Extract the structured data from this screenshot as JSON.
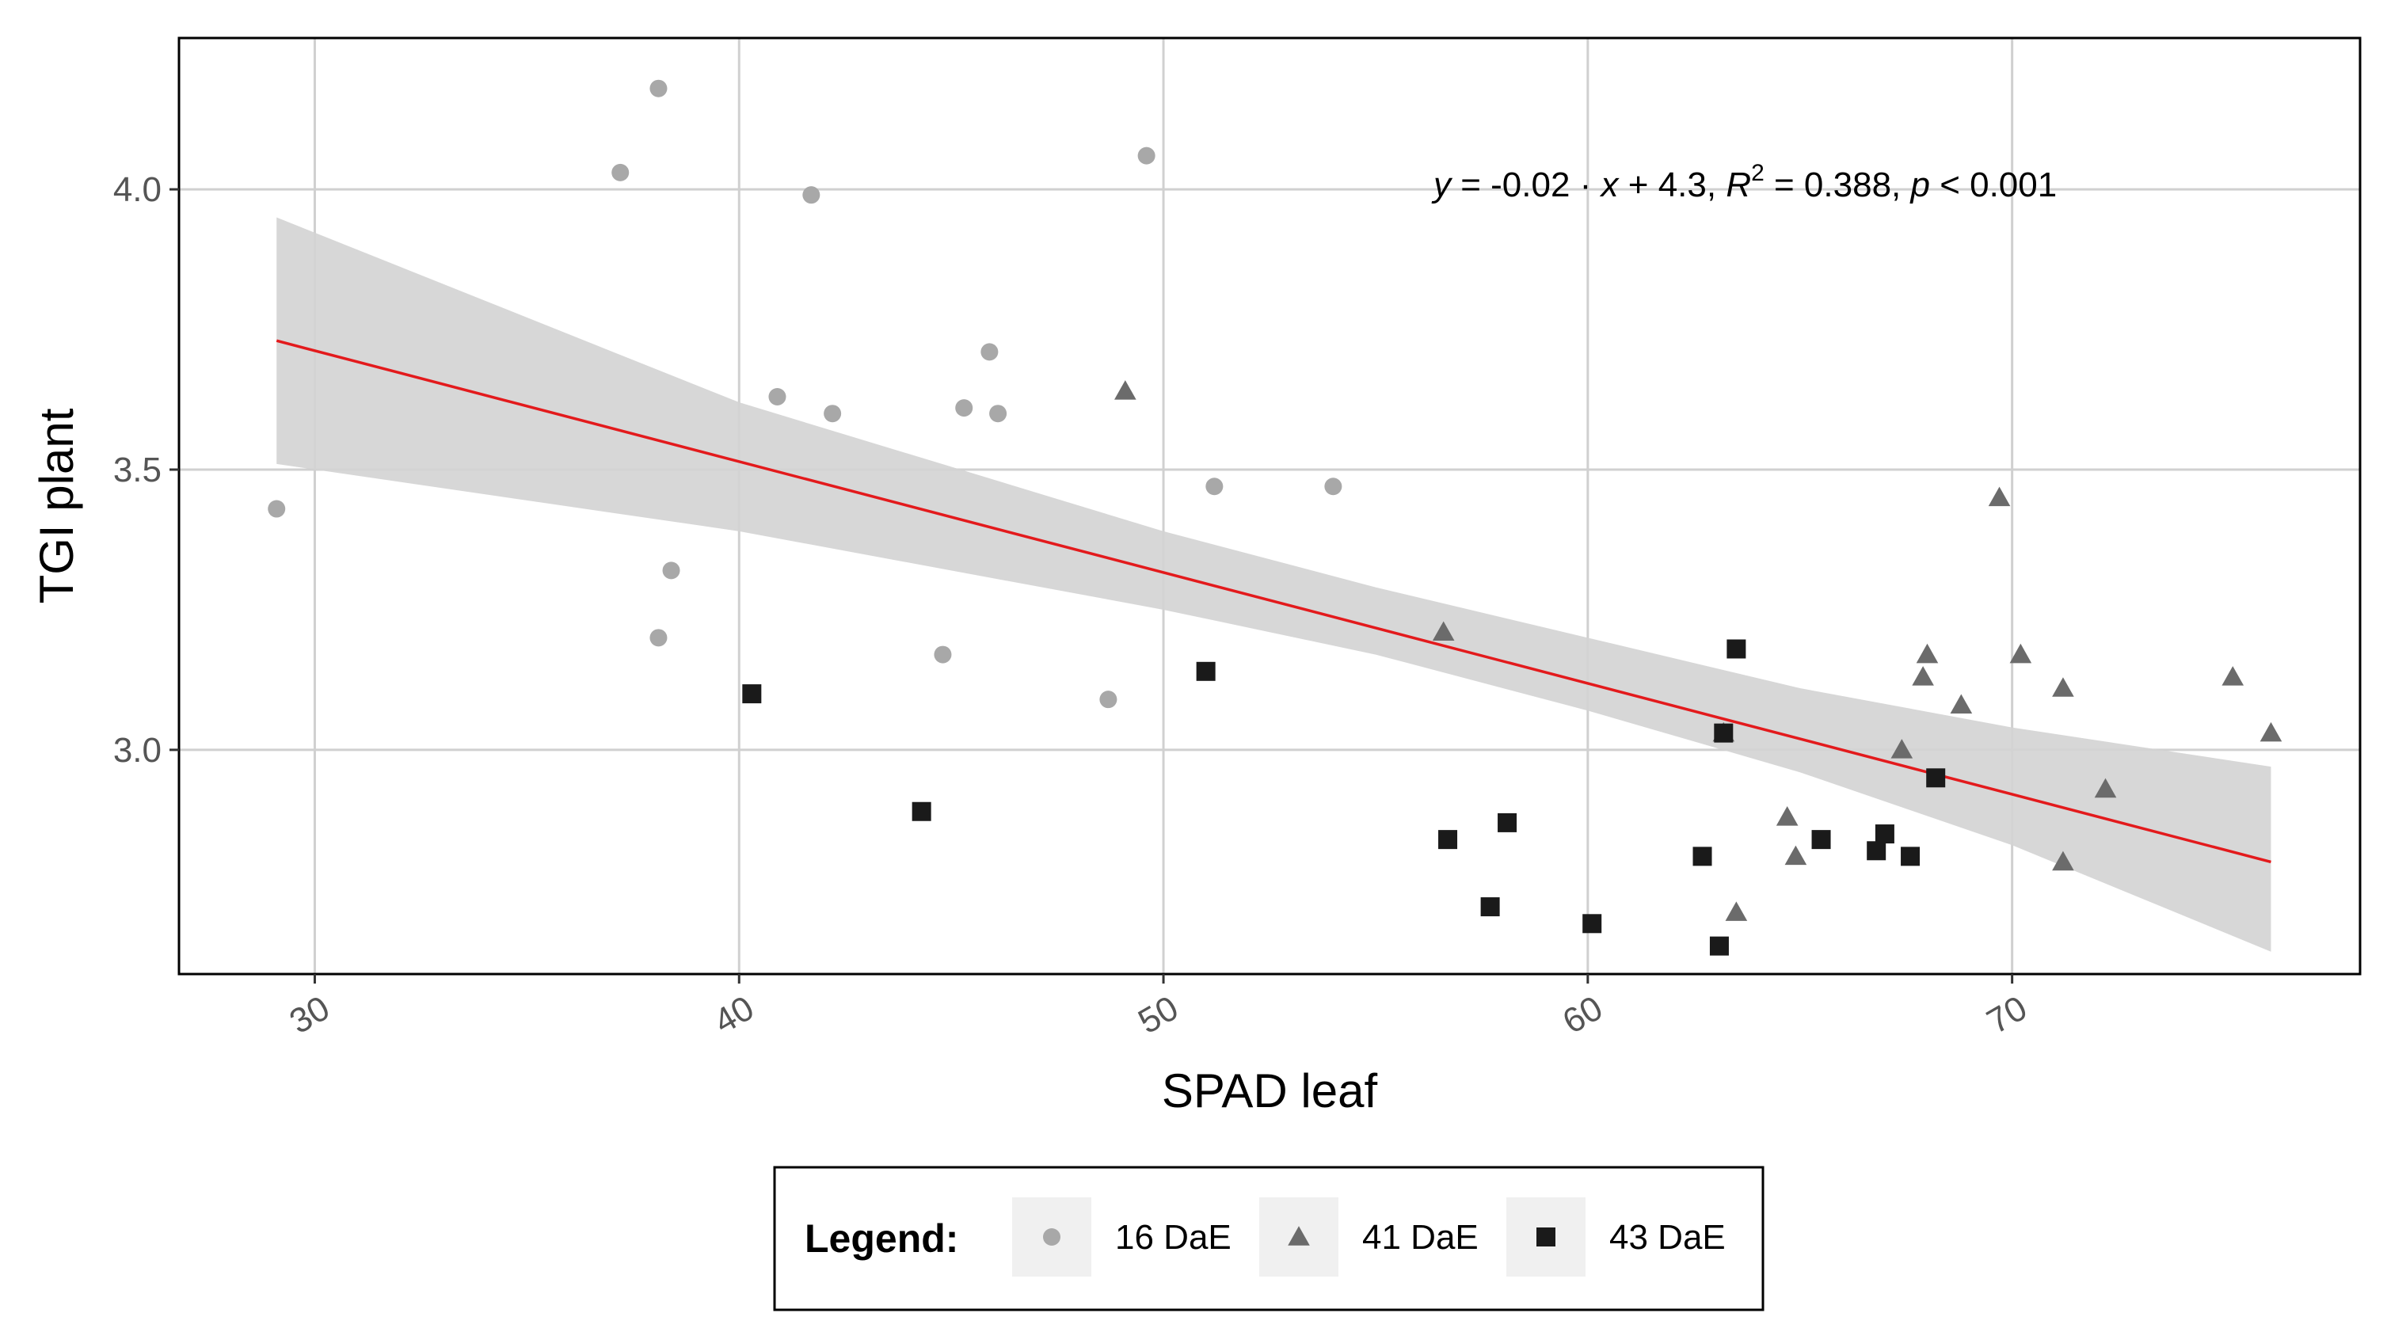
{
  "chart_data": {
    "type": "scatter",
    "xlabel": "SPAD leaf",
    "ylabel": "TGI plant",
    "xlim": [
      26.8,
      78.2
    ],
    "ylim": [
      2.6,
      4.27
    ],
    "x_ticks": [
      30,
      40,
      50,
      60,
      70
    ],
    "y_ticks": [
      3.0,
      3.5,
      4.0
    ],
    "x_tick_labels": [
      "30",
      "40",
      "50",
      "60",
      "70"
    ],
    "y_tick_labels": [
      "3.0",
      "3.5",
      "4.0"
    ],
    "grid": true,
    "equation": {
      "y_italic": "y",
      "eq_part1": " = -0.02 · ",
      "x_italic": "x",
      "eq_part2": " + 4.3,  ",
      "r_italic": "R",
      "r_sup": "2",
      "eq_part3": " = 0.388,  ",
      "p_italic": "p",
      "eq_part4": " < 0.001"
    },
    "regression": {
      "slope": -0.02,
      "intercept": 4.3,
      "r2": 0.388,
      "p": "< 0.001",
      "x_range": [
        29.1,
        76.1
      ],
      "fit_endpoints": [
        3.73,
        2.8
      ],
      "ci_points": [
        {
          "x": 29.1,
          "lower": 3.51,
          "upper": 3.95
        },
        {
          "x": 40,
          "lower": 3.39,
          "upper": 3.62
        },
        {
          "x": 50,
          "lower": 3.25,
          "upper": 3.39
        },
        {
          "x": 55,
          "lower": 3.17,
          "upper": 3.29
        },
        {
          "x": 60,
          "lower": 3.07,
          "upper": 3.2
        },
        {
          "x": 65,
          "lower": 2.96,
          "upper": 3.11
        },
        {
          "x": 70,
          "lower": 2.83,
          "upper": 3.04
        },
        {
          "x": 76.1,
          "lower": 2.64,
          "upper": 2.97
        }
      ],
      "line_color": "#e31a1c",
      "band_color": "#d3d3d3"
    },
    "legend": {
      "title": "Legend:",
      "position": "bottom"
    },
    "series": [
      {
        "name": "16 DaE",
        "marker": "circle",
        "color": "#a8a8a8",
        "points": [
          [
            29.1,
            3.43
          ],
          [
            37.2,
            4.03
          ],
          [
            38.1,
            4.18
          ],
          [
            38.1,
            3.2
          ],
          [
            38.4,
            3.32
          ],
          [
            40.9,
            3.63
          ],
          [
            41.7,
            3.99
          ],
          [
            42.2,
            3.6
          ],
          [
            44.8,
            3.17
          ],
          [
            45.3,
            3.61
          ],
          [
            45.9,
            3.71
          ],
          [
            46.1,
            3.6
          ],
          [
            48.7,
            3.09
          ],
          [
            49.6,
            4.06
          ],
          [
            51.2,
            3.47
          ],
          [
            54.0,
            3.47
          ]
        ]
      },
      {
        "name": "41 DaE",
        "marker": "triangle",
        "color": "#6b6b6b",
        "points": [
          [
            49.1,
            3.64
          ],
          [
            56.6,
            3.21
          ],
          [
            63.2,
            3.03
          ],
          [
            63.5,
            2.71
          ],
          [
            64.7,
            2.88
          ],
          [
            64.9,
            2.81
          ],
          [
            67.4,
            3.0
          ],
          [
            67.9,
            3.13
          ],
          [
            68.0,
            3.17
          ],
          [
            68.8,
            3.08
          ],
          [
            69.7,
            3.45
          ],
          [
            70.2,
            3.17
          ],
          [
            71.2,
            3.11
          ],
          [
            71.2,
            2.8
          ],
          [
            72.2,
            2.93
          ],
          [
            75.2,
            3.13
          ],
          [
            76.1,
            3.03
          ]
        ]
      },
      {
        "name": "43 DaE",
        "marker": "square",
        "color": "#1a1a1a",
        "points": [
          [
            40.3,
            3.1
          ],
          [
            44.3,
            2.89
          ],
          [
            51.0,
            3.14
          ],
          [
            56.7,
            2.84
          ],
          [
            57.7,
            2.72
          ],
          [
            58.1,
            2.87
          ],
          [
            60.1,
            2.69
          ],
          [
            62.7,
            2.81
          ],
          [
            63.1,
            2.65
          ],
          [
            63.2,
            3.03
          ],
          [
            63.5,
            3.18
          ],
          [
            65.5,
            2.84
          ],
          [
            66.8,
            2.82
          ],
          [
            67.0,
            2.85
          ],
          [
            67.6,
            2.81
          ],
          [
            68.2,
            2.95
          ]
        ]
      }
    ]
  }
}
